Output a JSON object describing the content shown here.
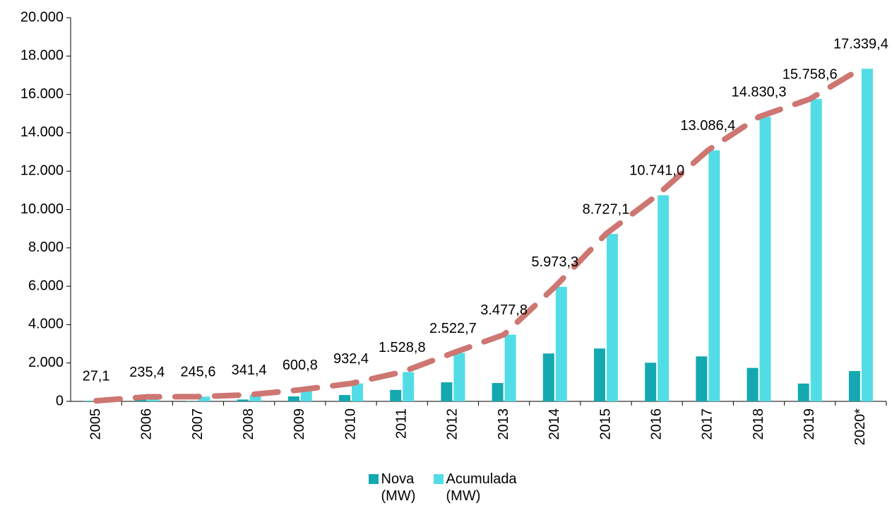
{
  "chart_data": {
    "type": "bar",
    "categories": [
      "2005",
      "2006",
      "2007",
      "2008",
      "2009",
      "2010",
      "2011",
      "2012",
      "2013",
      "2014",
      "2015",
      "2016",
      "2017",
      "2018",
      "2019",
      "2020*"
    ],
    "series": [
      {
        "name": "Nova (MW)",
        "color": "#14a9b0",
        "values": [
          27.1,
          208.3,
          10.2,
          95.8,
          259.4,
          331.6,
          596.4,
          993.9,
          955.1,
          2495.5,
          2753.8,
          2013.9,
          2345.4,
          1743.9,
          928.3,
          1580.8
        ]
      },
      {
        "name": "Acumulada (MW)",
        "color": "#52dde6",
        "line_color": "#cd7672",
        "values": [
          27.1,
          235.4,
          245.6,
          341.4,
          600.8,
          932.4,
          1528.8,
          2522.7,
          3477.8,
          5973.3,
          8727.1,
          10741.0,
          13086.4,
          14830.3,
          15758.6,
          17339.4
        ],
        "value_labels": [
          "27,1",
          "235,4",
          "245,6",
          "341,4",
          "600,8",
          "932,4",
          "1.528,8",
          "2.522,7",
          "3.477,8",
          "5.973,3",
          "8.727,1",
          "10.741,0",
          "13.086,4",
          "14.830,3",
          "15.758,6",
          "17.339,4"
        ]
      }
    ],
    "ylim": [
      0,
      20000
    ],
    "yticks": [
      0,
      {
        "value": 2000,
        "label": "2.000"
      },
      {
        "value": 4000,
        "label": "4.000"
      },
      {
        "value": 6000,
        "label": "6.000"
      },
      {
        "value": 8000,
        "label": "8.000"
      },
      {
        "value": 10000,
        "label": "10.000"
      },
      {
        "value": 12000,
        "label": "12.000"
      },
      {
        "value": 14000,
        "label": "14.000"
      },
      {
        "value": 16000,
        "label": "16.000"
      },
      {
        "value": 18000,
        "label": "18.000"
      },
      {
        "value": 20000,
        "label": "20.000"
      }
    ],
    "grid": false,
    "legend": "bottom"
  }
}
